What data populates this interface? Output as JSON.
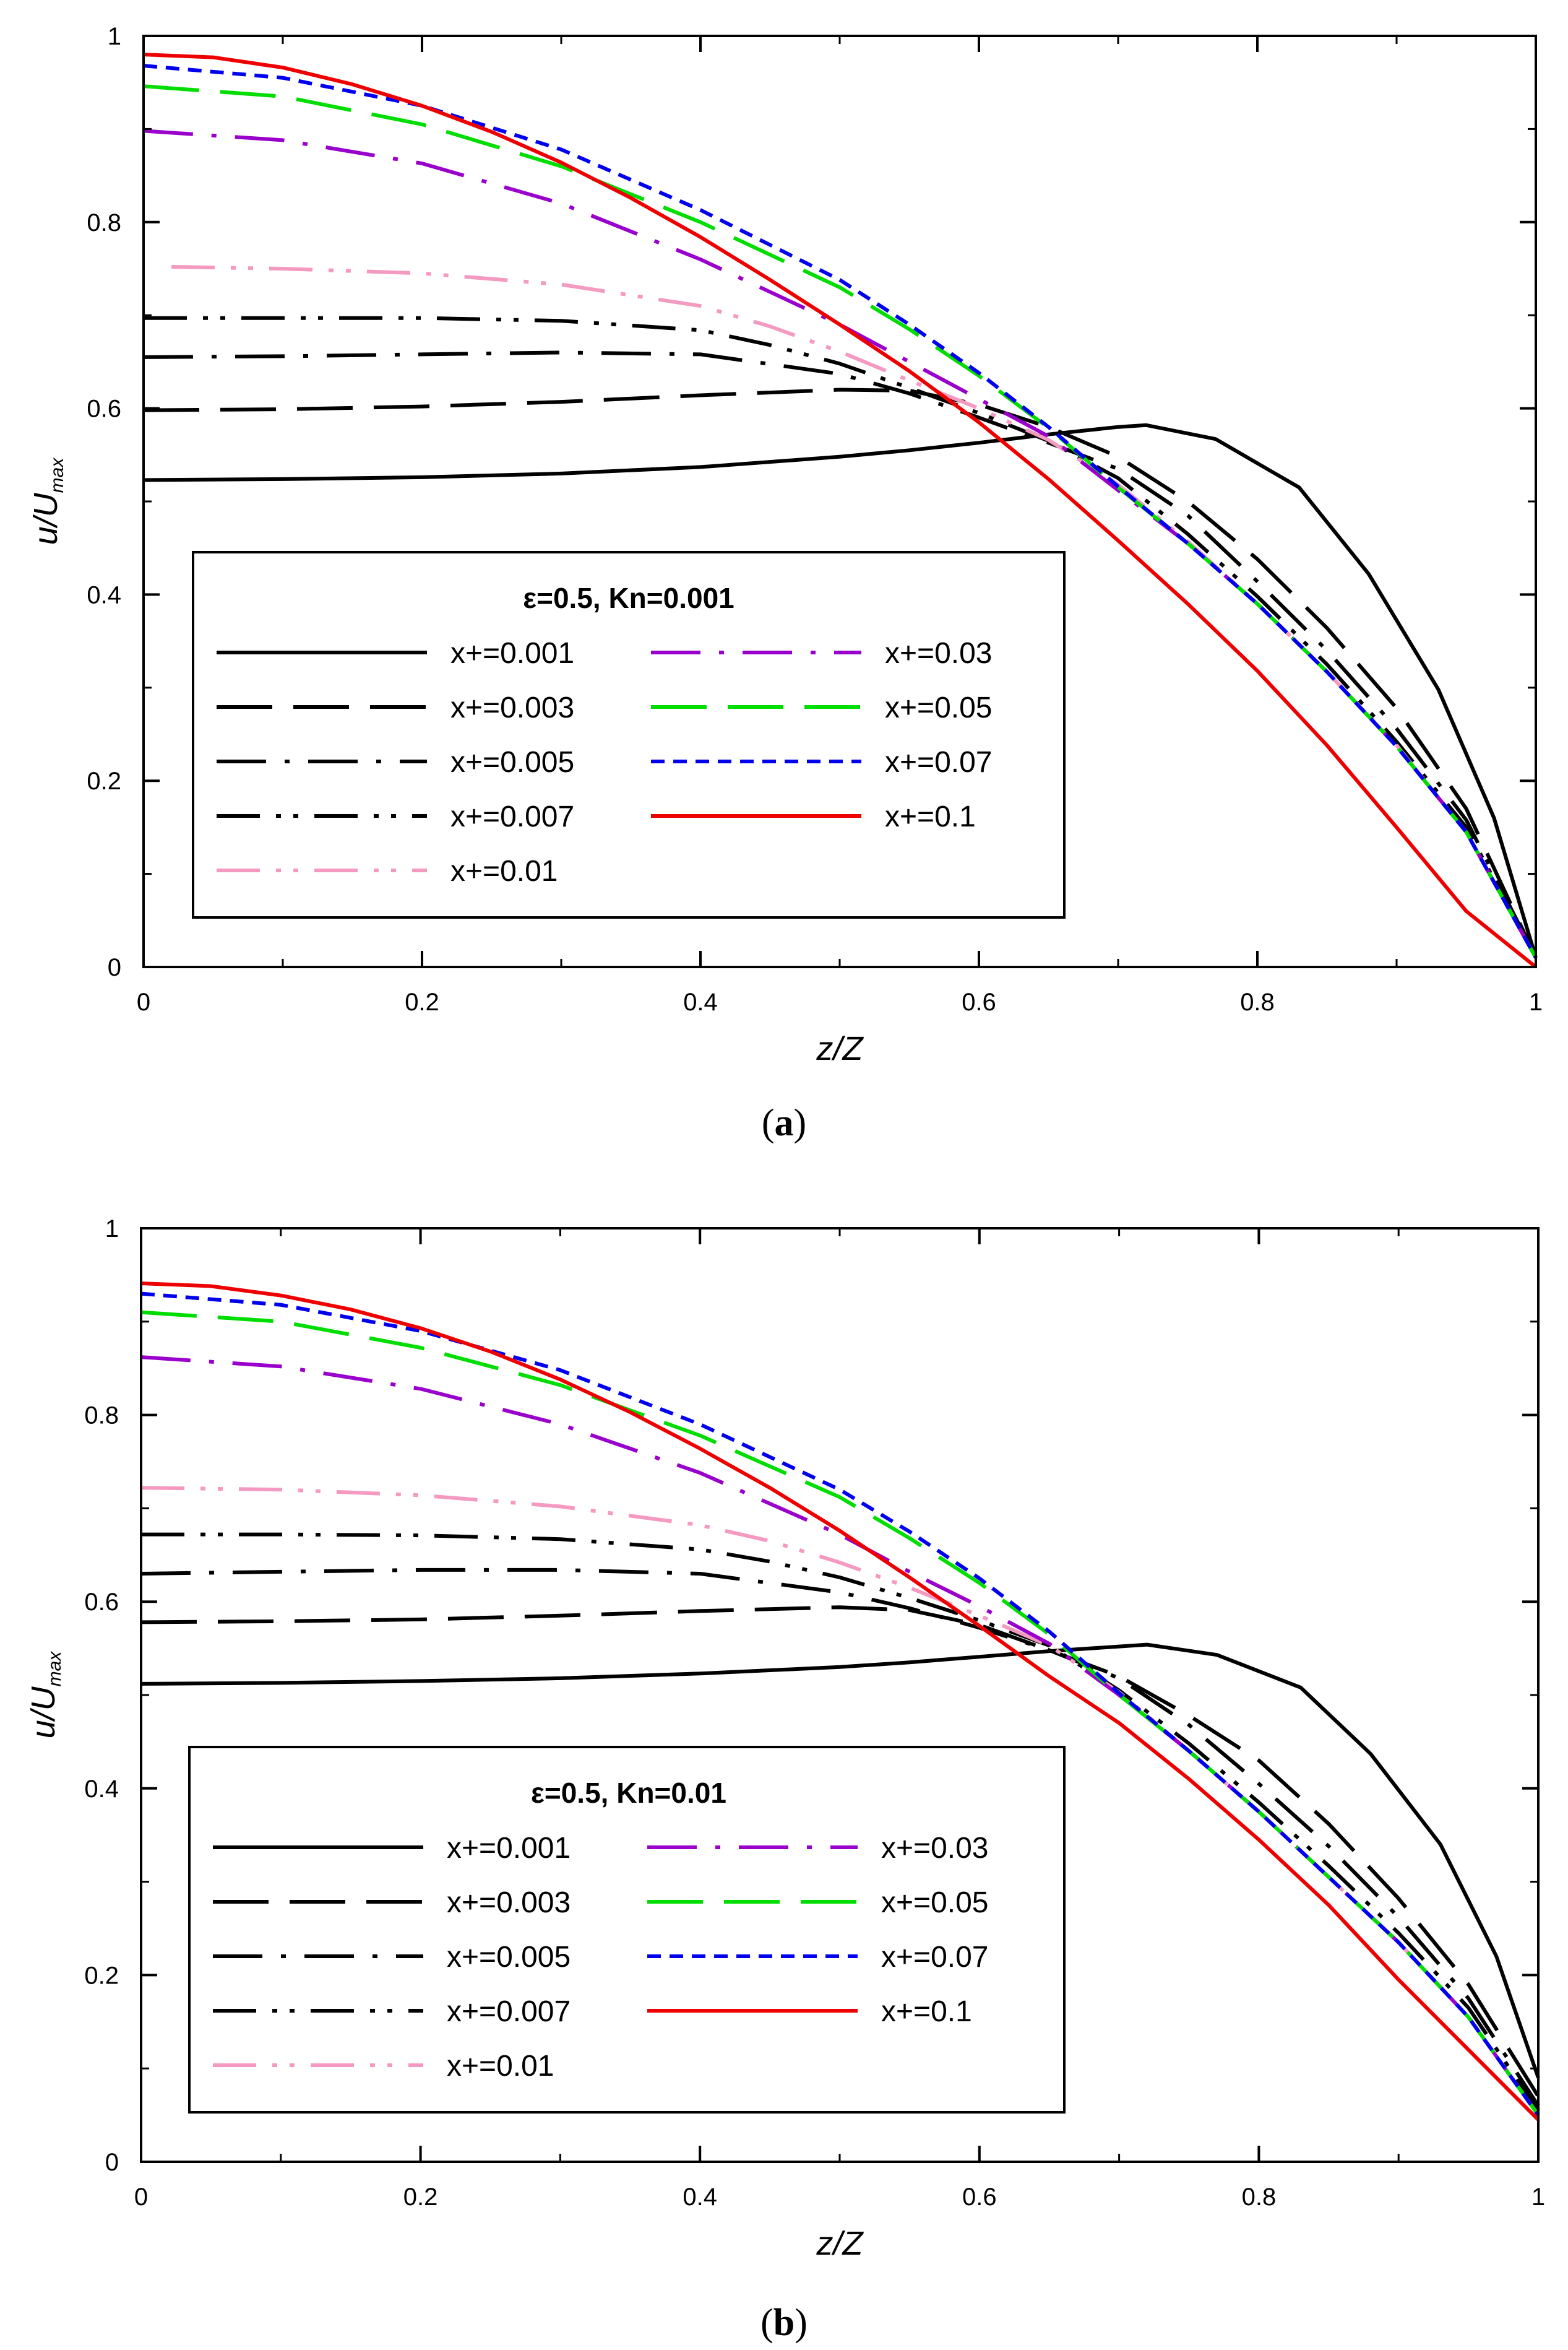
{
  "figure": {
    "captions": [
      {
        "open": "(",
        "letter": "a",
        "close": ")"
      },
      {
        "open": "(",
        "letter": "b",
        "close": ")"
      }
    ]
  },
  "chart_data": [
    {
      "type": "line",
      "panel": "a",
      "title": "",
      "legend_title": "ε=0.5, Kn=0.001",
      "xlabel": "z/Z",
      "ylabel": "u/U",
      "ylabel_sub": "max",
      "xlim": [
        0,
        1
      ],
      "ylim": [
        0,
        1
      ],
      "xticks": [
        0,
        0.2,
        0.4,
        0.6,
        0.8,
        1
      ],
      "xtick_labels": [
        "0",
        "0.2",
        "0.4",
        "0.6",
        "0.8",
        "1"
      ],
      "yticks": [
        0,
        0.2,
        0.4,
        0.6,
        0.8,
        1
      ],
      "ytick_labels": [
        "0",
        "0.2",
        "0.4",
        "0.6",
        "0.8",
        "1"
      ],
      "legend_position": "lower-left",
      "series": [
        {
          "name": "x+=0.001",
          "color": "#000000",
          "dash": "solid",
          "x": [
            0,
            0.1,
            0.2,
            0.3,
            0.4,
            0.5,
            0.55,
            0.6,
            0.65,
            0.7,
            0.72,
            0.77,
            0.83,
            0.88,
            0.93,
            0.97,
            1.0
          ],
          "y": [
            0.523,
            0.524,
            0.526,
            0.53,
            0.537,
            0.548,
            0.555,
            0.563,
            0.572,
            0.58,
            0.582,
            0.567,
            0.515,
            0.422,
            0.298,
            0.16,
            0.01
          ]
        },
        {
          "name": "x+=0.003",
          "color": "#000000",
          "dash": "longdash",
          "x": [
            0,
            0.1,
            0.2,
            0.3,
            0.4,
            0.5,
            0.55,
            0.6,
            0.65,
            0.7,
            0.75,
            0.8,
            0.85,
            0.9,
            0.95,
            1.0
          ],
          "y": [
            0.598,
            0.599,
            0.602,
            0.607,
            0.614,
            0.62,
            0.619,
            0.604,
            0.58,
            0.548,
            0.5,
            0.438,
            0.364,
            0.278,
            0.17,
            0.01
          ]
        },
        {
          "name": "x+=0.005",
          "color": "#000000",
          "dash": "dashdot",
          "x": [
            0,
            0.1,
            0.2,
            0.3,
            0.4,
            0.5,
            0.55,
            0.6,
            0.65,
            0.7,
            0.75,
            0.8,
            0.85,
            0.9,
            0.95,
            1.0
          ],
          "y": [
            0.655,
            0.656,
            0.658,
            0.66,
            0.658,
            0.637,
            0.616,
            0.59,
            0.563,
            0.535,
            0.485,
            0.414,
            0.34,
            0.256,
            0.158,
            0.01
          ]
        },
        {
          "name": "x+=0.007",
          "color": "#000000",
          "dash": "dashdotdot",
          "x": [
            0,
            0.1,
            0.2,
            0.3,
            0.4,
            0.45,
            0.5,
            0.55,
            0.6,
            0.65,
            0.7,
            0.75,
            0.8,
            0.85,
            0.9,
            0.95,
            1.0
          ],
          "y": [
            0.697,
            0.697,
            0.697,
            0.694,
            0.684,
            0.668,
            0.648,
            0.622,
            0.595,
            0.565,
            0.525,
            0.465,
            0.398,
            0.325,
            0.242,
            0.15,
            0.01
          ]
        },
        {
          "name": "x+=0.01",
          "color": "#f49ac1",
          "dash": "dashdotdot",
          "x": [
            0.02,
            0.1,
            0.2,
            0.3,
            0.4,
            0.45,
            0.5,
            0.55,
            0.6,
            0.65,
            0.7,
            0.75,
            0.8,
            0.85,
            0.9,
            0.95,
            1.0
          ],
          "y": [
            0.752,
            0.75,
            0.745,
            0.733,
            0.71,
            0.688,
            0.661,
            0.63,
            0.6,
            0.566,
            0.518,
            0.457,
            0.39,
            0.317,
            0.238,
            0.145,
            0.01
          ]
        },
        {
          "name": "x+=0.03",
          "color": "#9900cc",
          "dash": "dashdot",
          "x": [
            0,
            0.1,
            0.2,
            0.3,
            0.4,
            0.5,
            0.55,
            0.6,
            0.65,
            0.7,
            0.75,
            0.8,
            0.85,
            0.9,
            0.95,
            1.0
          ],
          "y": [
            0.898,
            0.888,
            0.863,
            0.82,
            0.76,
            0.69,
            0.65,
            0.61,
            0.57,
            0.512,
            0.455,
            0.39,
            0.317,
            0.237,
            0.145,
            0.01
          ]
        },
        {
          "name": "x+=0.05",
          "color": "#00dd00",
          "dash": "longdash",
          "x": [
            0,
            0.1,
            0.2,
            0.3,
            0.4,
            0.5,
            0.55,
            0.6,
            0.65,
            0.7,
            0.75,
            0.8,
            0.85,
            0.9,
            0.95,
            1.0
          ],
          "y": [
            0.946,
            0.935,
            0.905,
            0.86,
            0.8,
            0.73,
            0.685,
            0.635,
            0.579,
            0.515,
            0.455,
            0.39,
            0.317,
            0.237,
            0.145,
            0.01
          ]
        },
        {
          "name": "x+=0.07",
          "color": "#0000ee",
          "dash": "shortdash",
          "x": [
            0,
            0.1,
            0.2,
            0.3,
            0.4,
            0.5,
            0.55,
            0.6,
            0.65,
            0.7,
            0.75,
            0.8,
            0.85,
            0.9,
            0.95,
            1.0
          ],
          "y": [
            0.968,
            0.955,
            0.925,
            0.878,
            0.813,
            0.738,
            0.69,
            0.638,
            0.58,
            0.516,
            0.455,
            0.39,
            0.317,
            0.237,
            0.145,
            0.01
          ]
        },
        {
          "name": "x+=0.1",
          "color": "#ee0000",
          "dash": "solid",
          "x": [
            0,
            0.05,
            0.1,
            0.15,
            0.2,
            0.25,
            0.3,
            0.35,
            0.4,
            0.45,
            0.5,
            0.55,
            0.6,
            0.65,
            0.7,
            0.75,
            0.8,
            0.85,
            0.9,
            0.95,
            1.0
          ],
          "y": [
            0.98,
            0.977,
            0.966,
            0.948,
            0.925,
            0.897,
            0.864,
            0.826,
            0.784,
            0.738,
            0.69,
            0.64,
            0.585,
            0.524,
            0.458,
            0.39,
            0.318,
            0.238,
            0.15,
            0.06,
            0.0
          ]
        }
      ]
    },
    {
      "type": "line",
      "panel": "b",
      "title": "",
      "legend_title": "ε=0.5, Kn=0.01",
      "xlabel": "z/Z",
      "ylabel": "u/U",
      "ylabel_sub": "max",
      "xlim": [
        0,
        1
      ],
      "ylim": [
        0,
        1
      ],
      "xticks": [
        0,
        0.2,
        0.4,
        0.6,
        0.8,
        1
      ],
      "xtick_labels": [
        "0",
        "0.2",
        "0.4",
        "0.6",
        "0.8",
        "1"
      ],
      "yticks": [
        0,
        0.2,
        0.4,
        0.6,
        0.8,
        1
      ],
      "ytick_labels": [
        "0",
        "0.2",
        "0.4",
        "0.6",
        "0.8",
        "1"
      ],
      "legend_position": "lower-left",
      "series": [
        {
          "name": "x+=0.001",
          "color": "#000000",
          "dash": "solid",
          "x": [
            0,
            0.1,
            0.2,
            0.3,
            0.4,
            0.5,
            0.55,
            0.6,
            0.65,
            0.7,
            0.72,
            0.77,
            0.83,
            0.88,
            0.93,
            0.97,
            1.0
          ],
          "y": [
            0.512,
            0.513,
            0.515,
            0.518,
            0.523,
            0.53,
            0.535,
            0.541,
            0.547,
            0.552,
            0.554,
            0.543,
            0.508,
            0.437,
            0.34,
            0.22,
            0.09
          ]
        },
        {
          "name": "x+=0.003",
          "color": "#000000",
          "dash": "longdash",
          "x": [
            0,
            0.1,
            0.2,
            0.3,
            0.4,
            0.5,
            0.55,
            0.6,
            0.65,
            0.7,
            0.75,
            0.8,
            0.85,
            0.9,
            0.95,
            1.0
          ],
          "y": [
            0.578,
            0.579,
            0.581,
            0.585,
            0.59,
            0.594,
            0.591,
            0.575,
            0.548,
            0.52,
            0.478,
            0.43,
            0.362,
            0.282,
            0.19,
            0.07
          ]
        },
        {
          "name": "x+=0.005",
          "color": "#000000",
          "dash": "dashdot",
          "x": [
            0,
            0.1,
            0.2,
            0.3,
            0.4,
            0.5,
            0.55,
            0.6,
            0.65,
            0.7,
            0.75,
            0.8,
            0.85,
            0.9,
            0.95,
            1.0
          ],
          "y": [
            0.63,
            0.632,
            0.634,
            0.634,
            0.63,
            0.61,
            0.593,
            0.572,
            0.548,
            0.518,
            0.468,
            0.405,
            0.338,
            0.262,
            0.175,
            0.06
          ]
        },
        {
          "name": "x+=0.007",
          "color": "#000000",
          "dash": "dashdotdot",
          "x": [
            0,
            0.1,
            0.2,
            0.3,
            0.4,
            0.45,
            0.5,
            0.55,
            0.6,
            0.65,
            0.7,
            0.75,
            0.8,
            0.85,
            0.9,
            0.95,
            1.0
          ],
          "y": [
            0.672,
            0.672,
            0.671,
            0.667,
            0.656,
            0.643,
            0.626,
            0.604,
            0.58,
            0.553,
            0.505,
            0.448,
            0.385,
            0.317,
            0.245,
            0.165,
            0.055
          ]
        },
        {
          "name": "x+=0.01",
          "color": "#f49ac1",
          "dash": "dashdotdot",
          "x": [
            0,
            0.1,
            0.2,
            0.3,
            0.4,
            0.45,
            0.5,
            0.55,
            0.6,
            0.65,
            0.7,
            0.75,
            0.8,
            0.85,
            0.9,
            0.95,
            1.0
          ],
          "y": [
            0.722,
            0.72,
            0.714,
            0.702,
            0.682,
            0.665,
            0.642,
            0.615,
            0.585,
            0.553,
            0.503,
            0.44,
            0.375,
            0.305,
            0.235,
            0.155,
            0.05
          ]
        },
        {
          "name": "x+=0.03",
          "color": "#9900cc",
          "dash": "dashdot",
          "x": [
            0,
            0.1,
            0.2,
            0.3,
            0.4,
            0.5,
            0.55,
            0.6,
            0.65,
            0.7,
            0.75,
            0.8,
            0.85,
            0.9,
            0.95,
            1.0
          ],
          "y": [
            0.862,
            0.852,
            0.828,
            0.79,
            0.738,
            0.672,
            0.632,
            0.595,
            0.555,
            0.5,
            0.44,
            0.375,
            0.305,
            0.235,
            0.155,
            0.05
          ]
        },
        {
          "name": "x+=0.05",
          "color": "#00dd00",
          "dash": "longdash",
          "x": [
            0,
            0.1,
            0.2,
            0.3,
            0.4,
            0.5,
            0.55,
            0.6,
            0.65,
            0.7,
            0.75,
            0.8,
            0.85,
            0.9,
            0.95,
            1.0
          ],
          "y": [
            0.91,
            0.9,
            0.872,
            0.832,
            0.778,
            0.712,
            0.668,
            0.62,
            0.565,
            0.5,
            0.44,
            0.375,
            0.305,
            0.235,
            0.155,
            0.05
          ]
        },
        {
          "name": "x+=0.07",
          "color": "#0000ee",
          "dash": "shortdash",
          "x": [
            0,
            0.1,
            0.2,
            0.3,
            0.4,
            0.5,
            0.55,
            0.6,
            0.65,
            0.7,
            0.75,
            0.8,
            0.85,
            0.9,
            0.95,
            1.0
          ],
          "y": [
            0.93,
            0.918,
            0.89,
            0.848,
            0.79,
            0.72,
            0.675,
            0.625,
            0.568,
            0.502,
            0.44,
            0.375,
            0.305,
            0.235,
            0.155,
            0.05
          ]
        },
        {
          "name": "x+=0.1",
          "color": "#ee0000",
          "dash": "solid",
          "x": [
            0,
            0.05,
            0.1,
            0.15,
            0.2,
            0.25,
            0.3,
            0.35,
            0.4,
            0.45,
            0.5,
            0.55,
            0.6,
            0.65,
            0.7,
            0.75,
            0.8,
            0.85,
            0.9,
            0.95,
            1.0
          ],
          "y": [
            0.941,
            0.938,
            0.928,
            0.913,
            0.893,
            0.868,
            0.838,
            0.803,
            0.764,
            0.722,
            0.676,
            0.626,
            0.574,
            0.52,
            0.47,
            0.41,
            0.345,
            0.275,
            0.195,
            0.12,
            0.045
          ]
        }
      ]
    }
  ]
}
